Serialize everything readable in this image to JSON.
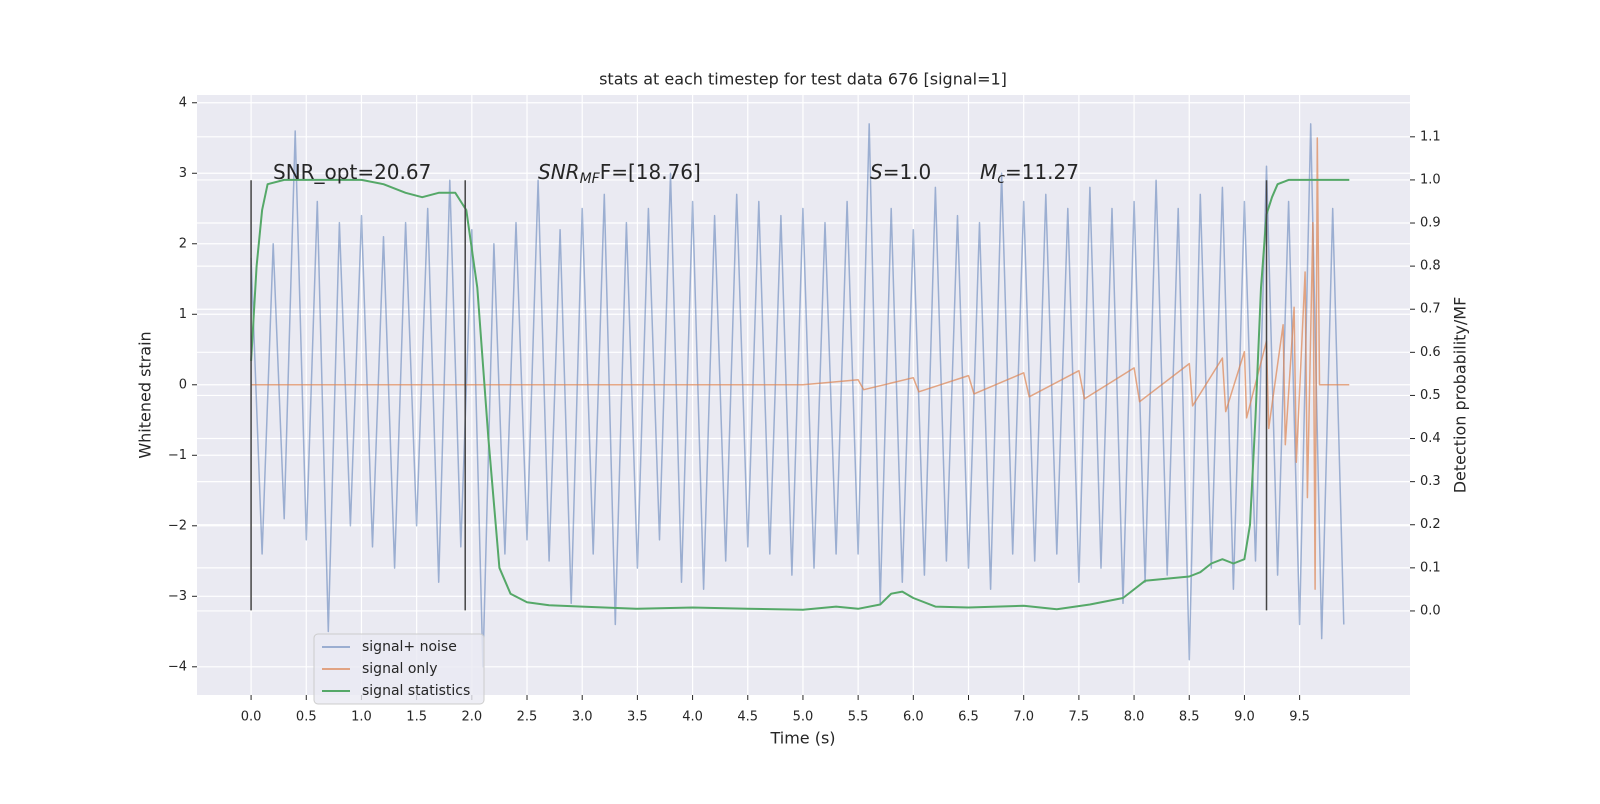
{
  "chart_data": {
    "type": "line",
    "title": "stats at each timestep for test data 676 [signal=1]",
    "xlabel": "Time (s)",
    "ylabel": "Whitened strain",
    "y2label": "Detection probability/MF",
    "xlim": [
      -0.49,
      10.5
    ],
    "ylim": [
      -4.4,
      4.11
    ],
    "y2lim": [
      -0.195,
      1.197
    ],
    "xticks": [
      {
        "value": 0,
        "label": "0.0"
      },
      {
        "value": 0.5,
        "label": "0.5"
      },
      {
        "value": 1,
        "label": "1.0"
      },
      {
        "value": 1.5,
        "label": "1.5"
      },
      {
        "value": 2,
        "label": "2.0"
      },
      {
        "value": 2.5,
        "label": "2.5"
      },
      {
        "value": 3,
        "label": "3.0"
      },
      {
        "value": 3.5,
        "label": "3.5"
      },
      {
        "value": 4,
        "label": "4.0"
      },
      {
        "value": 4.5,
        "label": "4.5"
      },
      {
        "value": 5,
        "label": "5.0"
      },
      {
        "value": 5.5,
        "label": "5.5"
      },
      {
        "value": 6,
        "label": "6.0"
      },
      {
        "value": 6.5,
        "label": "6.5"
      },
      {
        "value": 7,
        "label": "7.0"
      },
      {
        "value": 7.5,
        "label": "7.5"
      },
      {
        "value": 8,
        "label": "8.0"
      },
      {
        "value": 8.5,
        "label": "8.5"
      },
      {
        "value": 9,
        "label": "9.0"
      },
      {
        "value": 9.5,
        "label": "9.5"
      }
    ],
    "yticks": [
      {
        "value": -4,
        "label": "−4"
      },
      {
        "value": -3,
        "label": "−3"
      },
      {
        "value": -2,
        "label": "−2"
      },
      {
        "value": -1,
        "label": "−1"
      },
      0,
      1,
      2,
      3,
      4
    ],
    "y2ticks": [
      {
        "value": 0,
        "label": "0.0"
      },
      {
        "value": 0.1,
        "label": "0.1"
      },
      {
        "value": 0.2,
        "label": "0.2"
      },
      {
        "value": 0.3,
        "label": "0.3"
      },
      {
        "value": 0.4,
        "label": "0.4"
      },
      {
        "value": 0.5,
        "label": "0.5"
      },
      {
        "value": 0.6,
        "label": "0.6"
      },
      {
        "value": 0.7,
        "label": "0.7"
      },
      {
        "value": 0.8,
        "label": "0.8"
      },
      {
        "value": 0.9,
        "label": "0.9"
      },
      {
        "value": 1,
        "label": "1.0"
      },
      {
        "value": 1.1,
        "label": "1.1"
      }
    ],
    "grid": true,
    "legend": "lower left",
    "series": [
      {
        "name": "signal+ noise",
        "color": "#4c72b0",
        "opacity": 0.5,
        "x": [
          0.0,
          0.1,
          0.2,
          0.3,
          0.4,
          0.5,
          0.6,
          0.7,
          0.8,
          0.9,
          1.0,
          1.1,
          1.2,
          1.3,
          1.4,
          1.5,
          1.6,
          1.7,
          1.8,
          1.9,
          2.0,
          2.1,
          2.2,
          2.3,
          2.4,
          2.5,
          2.6,
          2.7,
          2.8,
          2.9,
          3.0,
          3.1,
          3.2,
          3.3,
          3.4,
          3.5,
          3.6,
          3.7,
          3.8,
          3.9,
          4.0,
          4.1,
          4.2,
          4.3,
          4.4,
          4.5,
          4.6,
          4.7,
          4.8,
          4.9,
          5.0,
          5.1,
          5.2,
          5.3,
          5.4,
          5.5,
          5.6,
          5.7,
          5.8,
          5.9,
          6.0,
          6.1,
          6.2,
          6.3,
          6.4,
          6.5,
          6.6,
          6.7,
          6.8,
          6.9,
          7.0,
          7.1,
          7.2,
          7.3,
          7.4,
          7.5,
          7.6,
          7.7,
          7.8,
          7.9,
          8.0,
          8.1,
          8.2,
          8.3,
          8.4,
          8.5,
          8.6,
          8.7,
          8.8,
          8.9,
          9.0,
          9.1,
          9.2,
          9.3,
          9.4,
          9.5,
          9.6,
          9.7,
          9.8,
          9.9
        ],
        "values": [
          1.8,
          -2.4,
          2.0,
          -1.9,
          3.6,
          -2.2,
          2.6,
          -3.5,
          2.3,
          -2.0,
          2.4,
          -2.3,
          2.1,
          -2.6,
          2.3,
          -2.0,
          2.5,
          -2.8,
          2.9,
          -2.3,
          2.2,
          -4.0,
          2.0,
          -2.4,
          2.3,
          -2.2,
          2.9,
          -2.5,
          2.2,
          -3.1,
          2.5,
          -2.4,
          2.7,
          -3.4,
          2.3,
          -2.6,
          2.5,
          -2.2,
          3.0,
          -2.8,
          2.6,
          -2.9,
          2.4,
          -2.5,
          2.7,
          -2.3,
          2.6,
          -2.4,
          2.4,
          -2.7,
          2.5,
          -2.6,
          2.3,
          -2.4,
          2.6,
          -2.4,
          3.7,
          -3.1,
          2.5,
          -2.8,
          2.2,
          -2.7,
          2.8,
          -2.5,
          2.4,
          -2.6,
          2.3,
          -2.9,
          3.0,
          -2.4,
          2.6,
          -2.5,
          2.7,
          -2.4,
          2.5,
          -2.8,
          2.8,
          -2.6,
          2.5,
          -3.1,
          2.6,
          -2.8,
          2.9,
          -2.7,
          2.5,
          -3.9,
          2.7,
          -2.6,
          2.8,
          -2.9,
          2.6,
          -2.5,
          3.1,
          -2.7,
          2.6,
          -3.4,
          3.7,
          -3.6,
          2.5,
          -3.4
        ]
      },
      {
        "name": "signal only",
        "color": "#dd8452",
        "opacity": 0.7,
        "x": [
          0,
          5.0,
          5.5,
          5.55,
          6.0,
          6.05,
          6.5,
          6.55,
          7.0,
          7.05,
          7.5,
          7.55,
          8.0,
          8.05,
          8.5,
          8.53,
          8.8,
          8.83,
          9.0,
          9.02,
          9.2,
          9.22,
          9.35,
          9.37,
          9.45,
          9.47,
          9.55,
          9.57,
          9.62,
          9.64,
          9.66,
          9.68,
          9.95
        ],
        "values": [
          0,
          0,
          0.07,
          -0.07,
          0.1,
          -0.1,
          0.13,
          -0.13,
          0.17,
          -0.17,
          0.2,
          -0.2,
          0.24,
          -0.24,
          0.3,
          -0.3,
          0.38,
          -0.38,
          0.47,
          -0.47,
          0.62,
          -0.62,
          0.85,
          -0.85,
          1.1,
          -1.1,
          1.6,
          -1.6,
          2.3,
          -2.9,
          3.5,
          0,
          0
        ]
      },
      {
        "name": "signal statistics",
        "color": "#55a868",
        "opacity": 1,
        "axis": "y2",
        "x": [
          0.0,
          0.05,
          0.1,
          0.15,
          0.3,
          0.5,
          1.0,
          1.2,
          1.4,
          1.55,
          1.7,
          1.85,
          1.95,
          2.05,
          2.15,
          2.25,
          2.35,
          2.5,
          2.7,
          3.0,
          3.5,
          4.0,
          4.5,
          5.0,
          5.3,
          5.5,
          5.7,
          5.8,
          5.9,
          6.0,
          6.2,
          6.5,
          7.0,
          7.3,
          7.6,
          7.9,
          8.1,
          8.3,
          8.5,
          8.6,
          8.7,
          8.8,
          8.9,
          9.0,
          9.05,
          9.1,
          9.15,
          9.2,
          9.25,
          9.3,
          9.4,
          9.5,
          9.7,
          9.95
        ],
        "values": [
          0.58,
          0.8,
          0.93,
          0.99,
          1.0,
          1.0,
          1.0,
          0.99,
          0.97,
          0.96,
          0.97,
          0.97,
          0.93,
          0.75,
          0.4,
          0.1,
          0.04,
          0.02,
          0.013,
          0.01,
          0.005,
          0.008,
          0.005,
          0.003,
          0.01,
          0.005,
          0.015,
          0.04,
          0.045,
          0.03,
          0.01,
          0.008,
          0.012,
          0.004,
          0.015,
          0.03,
          0.07,
          0.075,
          0.08,
          0.09,
          0.11,
          0.12,
          0.11,
          0.12,
          0.2,
          0.45,
          0.75,
          0.92,
          0.96,
          0.99,
          1.0,
          1.0,
          1.0,
          1.0
        ]
      }
    ],
    "vlines": {
      "x": [
        0,
        1.94,
        9.2
      ],
      "ymin": -3.2,
      "ymax": 2.9,
      "color": "#444444"
    },
    "annotations": [
      [
        {
          "text": "SNR_opt=20.67"
        }
      ],
      [
        {
          "text": "SNR",
          "style": "italic"
        },
        {
          "text": "MF",
          "style": "sub"
        },
        {
          "text": "F=[18.76]"
        }
      ],
      [
        {
          "text": "S",
          "style": "italic"
        },
        {
          "text": "=1.0"
        }
      ],
      [
        {
          "text": "M",
          "style": "italic"
        },
        {
          "text": "c",
          "style": "sub"
        },
        {
          "text": "=11.27"
        }
      ]
    ]
  }
}
